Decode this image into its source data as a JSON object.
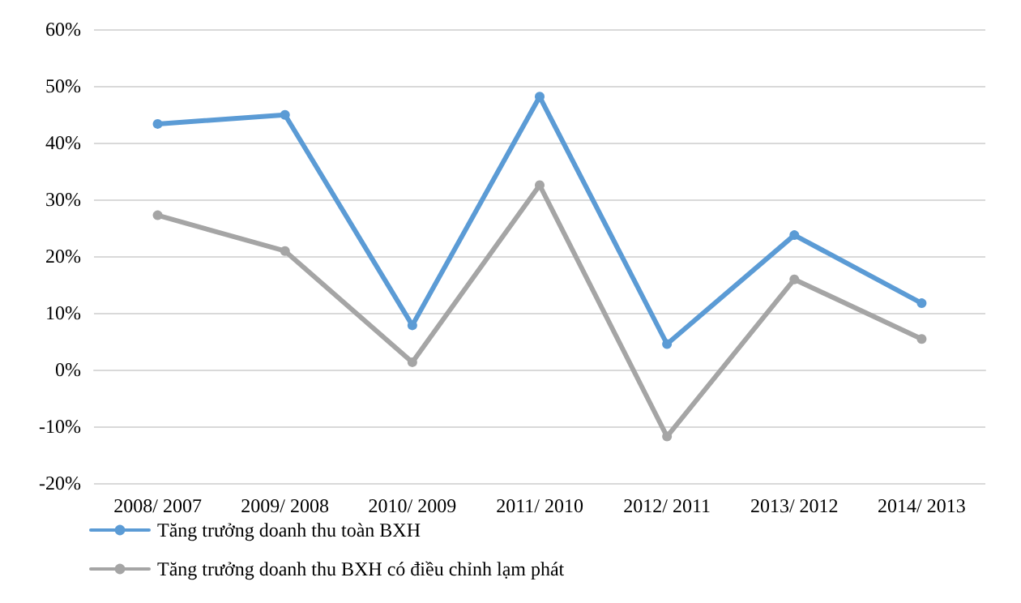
{
  "chart_data": {
    "type": "line",
    "categories": [
      "2008/ 2007",
      "2009/ 2008",
      "2010/ 2009",
      "2011/ 2010",
      "2012/ 2011",
      "2013/ 2012",
      "2014/ 2013"
    ],
    "series": [
      {
        "name": "Tăng trưởng doanh thu toàn BXH",
        "color": "#5b9bd5",
        "values": [
          43.3,
          44.9,
          7.8,
          48.1,
          4.5,
          23.7,
          11.7
        ]
      },
      {
        "name": "Tăng trưởng doanh thu BXH có điều chỉnh lạm phát",
        "color": "#a5a5a5",
        "values": [
          27.2,
          20.9,
          1.3,
          32.5,
          -11.8,
          15.9,
          5.4
        ]
      }
    ],
    "ylim": [
      -20,
      60
    ],
    "yticks": [
      {
        "value": -20,
        "label": "-20%"
      },
      {
        "value": -10,
        "label": "-10%"
      },
      {
        "value": 0,
        "label": "0%"
      },
      {
        "value": 10,
        "label": "10%"
      },
      {
        "value": 20,
        "label": "20%"
      },
      {
        "value": 30,
        "label": "30%"
      },
      {
        "value": 40,
        "label": "40%"
      },
      {
        "value": 50,
        "label": "50%"
      },
      {
        "value": 60,
        "label": "60%"
      }
    ],
    "grid": "y",
    "legend": "bottom left",
    "marker": "circle",
    "line_style": "solid"
  }
}
